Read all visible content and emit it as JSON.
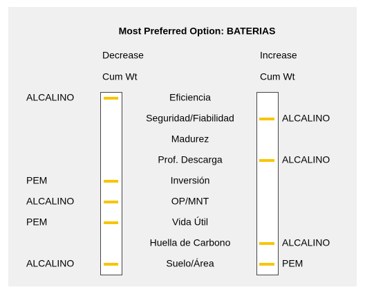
{
  "title": "Most Preferred Option: BATERIAS",
  "decrease": {
    "heading": "Decrease",
    "subheading": "Cum Wt"
  },
  "increase": {
    "heading": "Increase",
    "subheading": "Cum Wt"
  },
  "rows": [
    {
      "criterion": "Eficiencia",
      "decrease": "ALCALINO"
    },
    {
      "criterion": "Seguridad/Fiabilidad",
      "increase": "ALCALINO"
    },
    {
      "criterion": "Madurez"
    },
    {
      "criterion": "Prof. Descarga",
      "increase": "ALCALINO"
    },
    {
      "criterion": "Inversión",
      "decrease": "PEM"
    },
    {
      "criterion": "OP/MNT",
      "decrease": "ALCALINO"
    },
    {
      "criterion": "Vida Útil",
      "decrease": "PEM"
    },
    {
      "criterion": "Huella de Carbono",
      "increase": "ALCALINO"
    },
    {
      "criterion": "Suelo/Área",
      "decrease": "ALCALINO",
      "increase": "PEM"
    }
  ]
}
